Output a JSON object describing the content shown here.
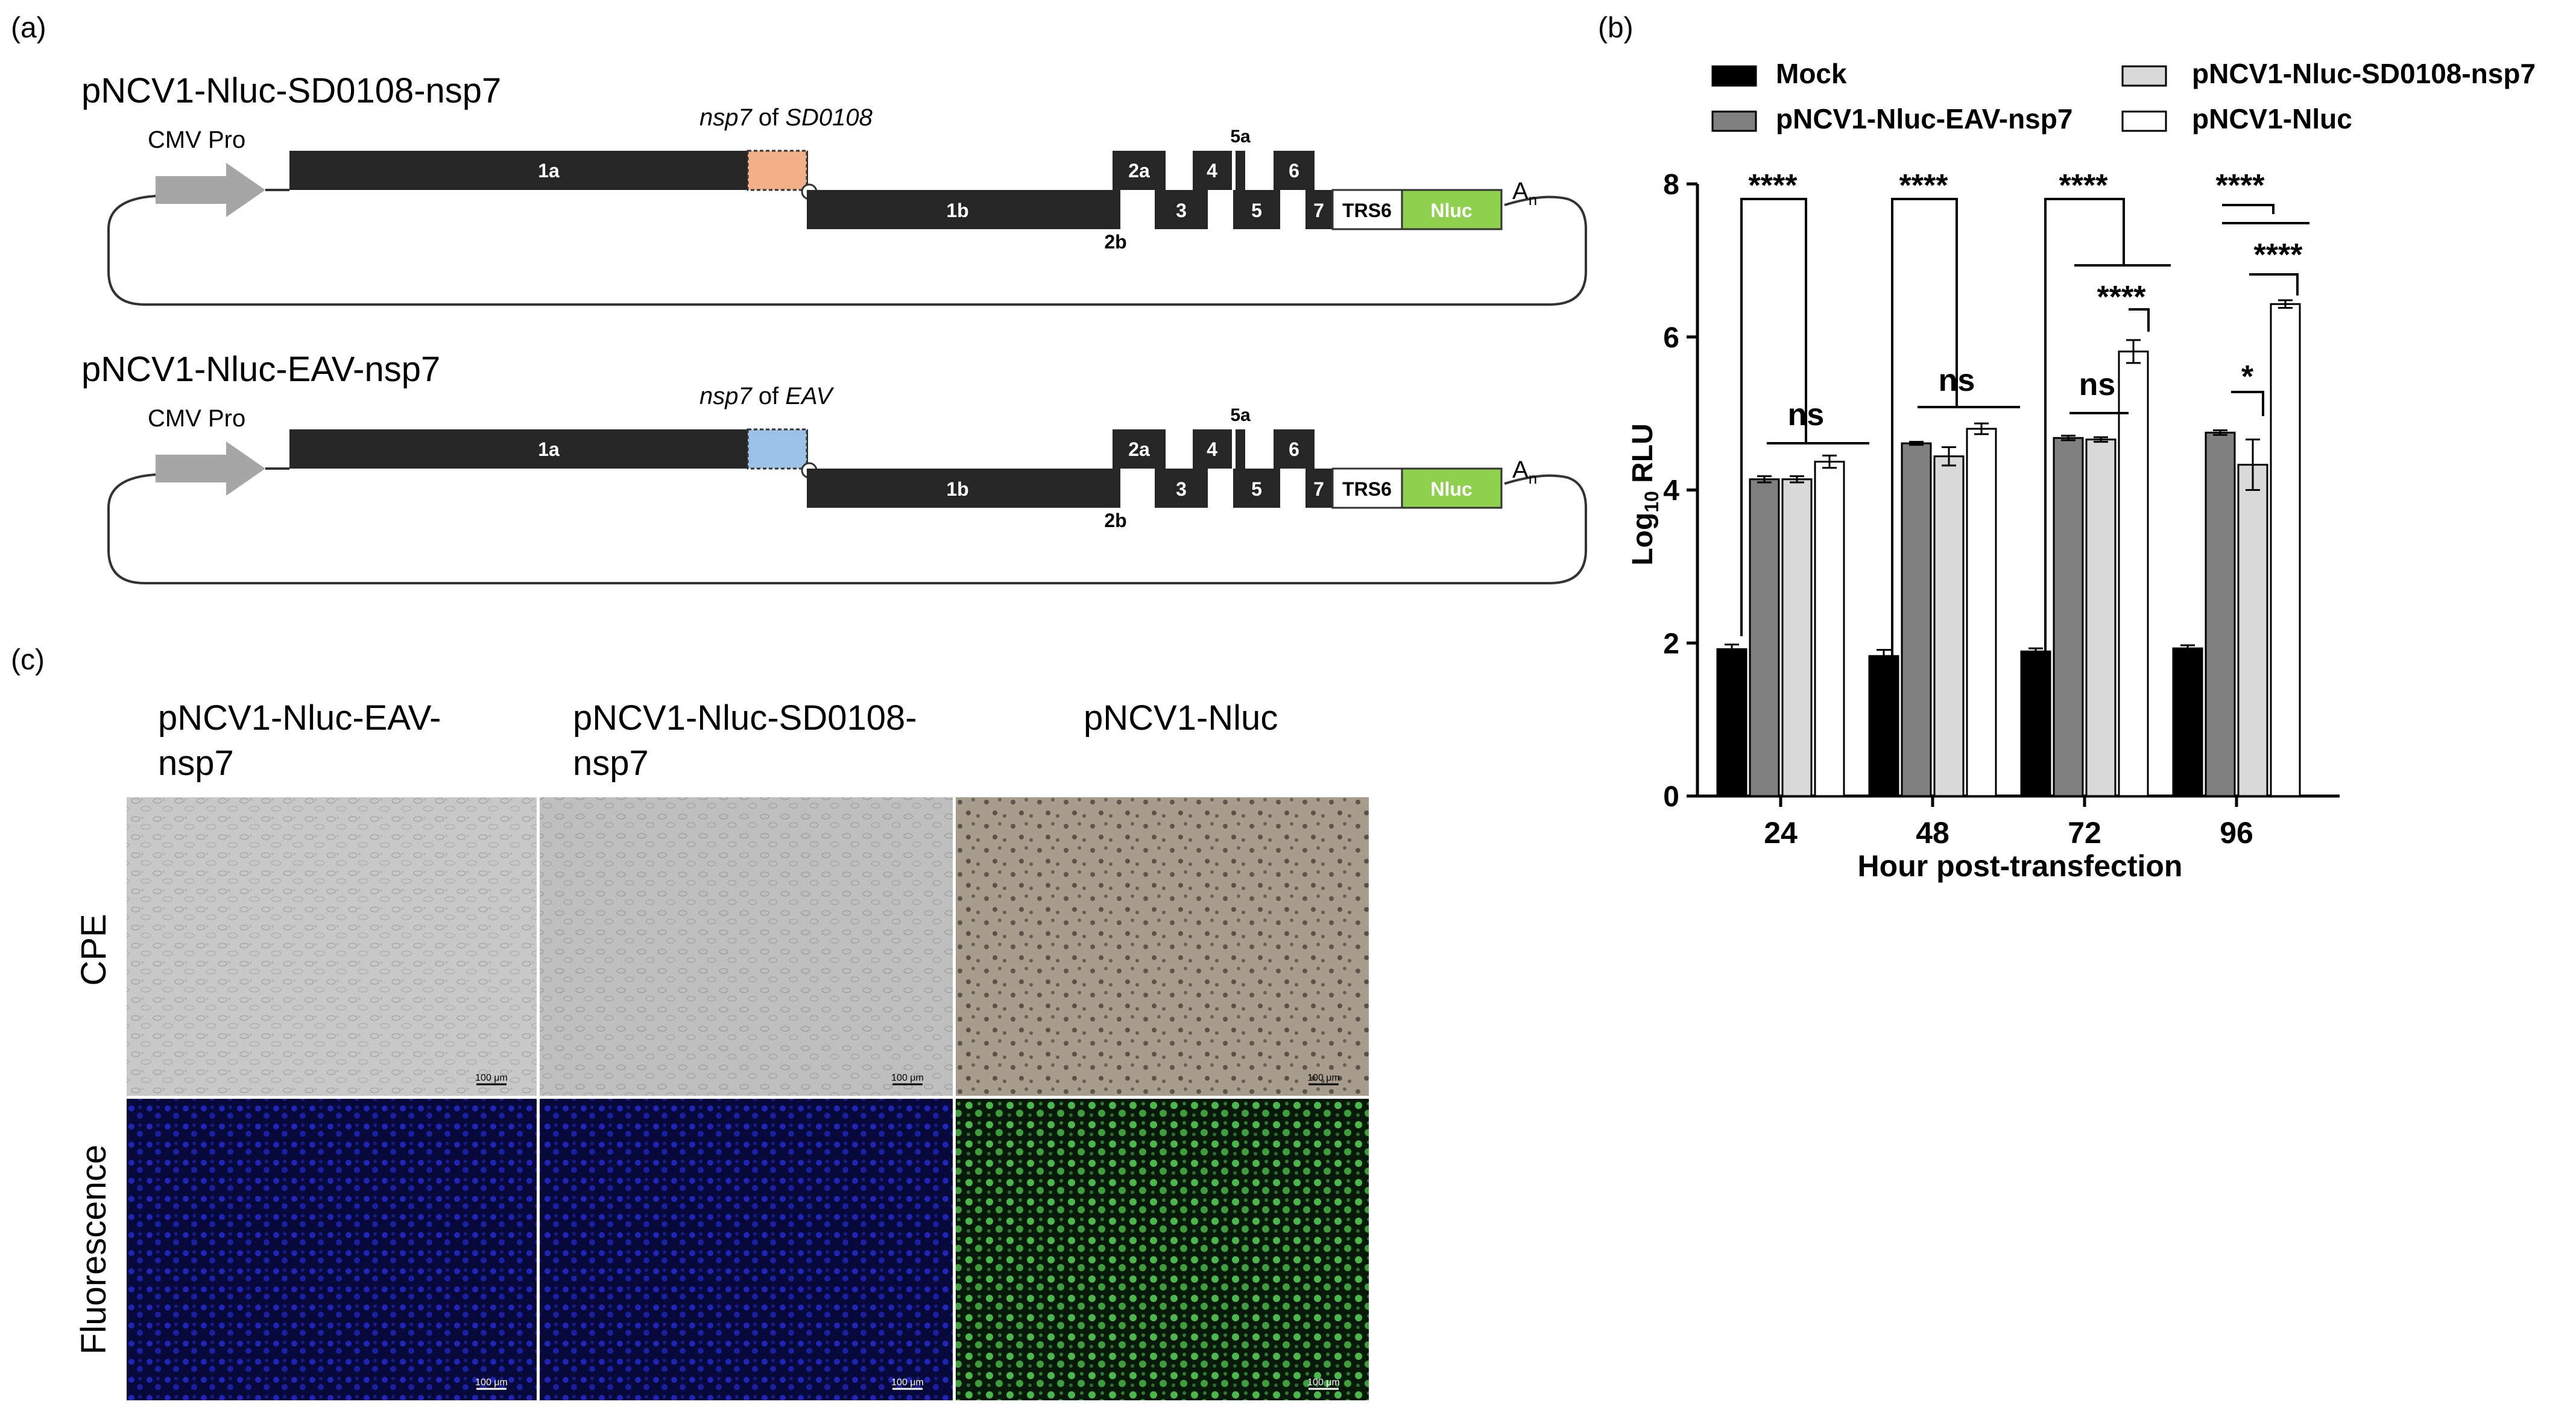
{
  "panel_a": {
    "label": "(a)",
    "constructs": [
      {
        "title": "pNCV1-Nluc-SD0108-nsp7",
        "promoter": "CMV Pro",
        "insert_prefix": "nsp7",
        "insert_suffix": " of ",
        "insert_source": "SD0108",
        "insert_color": "#f2b089"
      },
      {
        "title": "pNCV1-Nluc-EAV-nsp7",
        "promoter": "CMV Pro",
        "insert_prefix": "nsp7",
        "insert_suffix": " of ",
        "insert_source": "EAV",
        "insert_color": "#9cc2e5"
      }
    ],
    "genes": {
      "g1a": "1a",
      "g1b": "1b",
      "g2a": "2a",
      "g2b": "2b",
      "g3": "3",
      "g4": "4",
      "g5a": "5a",
      "g5": "5",
      "g6": "6",
      "g7": "7",
      "trs": "TRS6",
      "nluc": "Nluc",
      "polyA": "A",
      "polyA_sub": "n"
    },
    "colors": {
      "gene": "#262626",
      "nluc": "#8fd14f",
      "promoter": "#a6a6a6"
    }
  },
  "panel_b": {
    "label": "(b)",
    "chart_data": {
      "type": "bar",
      "categories": [
        "24",
        "48",
        "72",
        "96"
      ],
      "xlabel": "Hour post-transfection",
      "ylabel_prefix": "Log",
      "ylabel_sub": "10",
      "ylabel_suffix": " RLU",
      "ylim": [
        0,
        8
      ],
      "yticks": [
        "0",
        "2",
        "4",
        "6",
        "8"
      ],
      "legend_position": "top",
      "series": [
        {
          "name": "Mock",
          "color": "#000000",
          "values": [
            1.92,
            1.83,
            1.89,
            1.93
          ],
          "errors": [
            0.06,
            0.08,
            0.04,
            0.04
          ]
        },
        {
          "name": "pNCV1-Nluc-EAV-nsp7",
          "color": "#808080",
          "values": [
            4.14,
            4.61,
            4.68,
            4.75
          ],
          "errors": [
            0.04,
            0.02,
            0.03,
            0.03
          ]
        },
        {
          "name": "pNCV1-Nluc-SD0108-nsp7",
          "color": "#d9d9d9",
          "values": [
            4.14,
            4.44,
            4.66,
            4.33
          ],
          "errors": [
            0.04,
            0.12,
            0.03,
            0.33
          ]
        },
        {
          "name": "pNCV1-Nluc",
          "color": "#ffffff",
          "values": [
            4.37,
            4.8,
            5.81,
            6.43
          ],
          "errors": [
            0.08,
            0.07,
            0.15,
            0.05
          ]
        }
      ],
      "significance": {
        "four_star": "****",
        "one_star": "*",
        "ns": "ns"
      }
    }
  },
  "panel_c": {
    "label": "(c)",
    "columns": [
      {
        "line1": "pNCV1-Nluc-EAV-",
        "line2": "nsp7"
      },
      {
        "line1": "pNCV1-Nluc-SD0108-",
        "line2": "nsp7"
      },
      {
        "line1": "pNCV1-Nluc",
        "line2": ""
      }
    ],
    "rows": [
      "CPE",
      "Fluorescence"
    ],
    "scale_bar": "100 μm"
  }
}
